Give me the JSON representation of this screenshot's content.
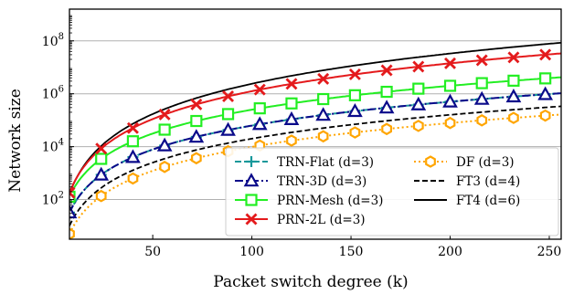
{
  "chart_data": {
    "type": "line",
    "xlabel": "Packet switch degree (k)",
    "ylabel": "Network size",
    "xlim": [
      8,
      256
    ],
    "ylim_log10": [
      0.5,
      9.2
    ],
    "y_scale": "log",
    "grid": "horizontal",
    "legend_position": "lower-right",
    "x_ticks": [
      50,
      100,
      150,
      200,
      250
    ],
    "y_ticks": [
      {
        "exp": 2,
        "label_base": "10",
        "label_exp": "2"
      },
      {
        "exp": 4,
        "label_base": "10",
        "label_exp": "4"
      },
      {
        "exp": 6,
        "label_base": "10",
        "label_exp": "6"
      },
      {
        "exp": 8,
        "label_base": "10",
        "label_exp": "8"
      }
    ],
    "x_marker_positions": [
      8,
      24,
      40,
      56,
      72,
      88,
      104,
      120,
      136,
      152,
      168,
      184,
      200,
      216,
      232,
      248
    ],
    "series": [
      {
        "key": "trn_flat",
        "name": "TRN-Flat (d=3)",
        "color": "#17989a",
        "dash": "7,3",
        "marker": "plus",
        "power": 3,
        "coef": 0.0625,
        "legend_col": 0,
        "legend_row": 0
      },
      {
        "key": "trn_3d",
        "name": "TRN-3D (d=3)",
        "color": "#0a0a8a",
        "dash": "9,3,2,3",
        "marker": "triangle",
        "power": 3,
        "coef": 0.0625,
        "legend_col": 0,
        "legend_row": 1
      },
      {
        "key": "prn_mesh",
        "name": "PRN-Mesh (d=3)",
        "color": "#22ee22",
        "dash": "",
        "marker": "square",
        "power": 3,
        "coef": 0.25,
        "legend_col": 0,
        "legend_row": 2
      },
      {
        "key": "prn_2l",
        "name": "PRN-2L (d=3)",
        "color": "#e41a1c",
        "dash": "",
        "marker": "x",
        "power": 3.5,
        "coef": 0.125,
        "legend_col": 0,
        "legend_row": 3
      },
      {
        "key": "df",
        "name": "DF (d=3)",
        "color": "#ffa500",
        "dash": "2,3",
        "marker": "hexagon",
        "power": 3,
        "coef": 0.0098,
        "legend_col": 1,
        "legend_row": 0
      },
      {
        "key": "ft3",
        "name": "FT3 (d=4)",
        "color": "#000000",
        "dash": "6,3",
        "marker": "none",
        "power": 3,
        "coef": 0.02,
        "legend_col": 1,
        "legend_row": 1
      },
      {
        "key": "ft4",
        "name": "FT4 (d=6)",
        "color": "#000000",
        "dash": "",
        "marker": "none",
        "power": 3.8,
        "coef": 0.06,
        "legend_col": 1,
        "legend_row": 2
      }
    ]
  }
}
